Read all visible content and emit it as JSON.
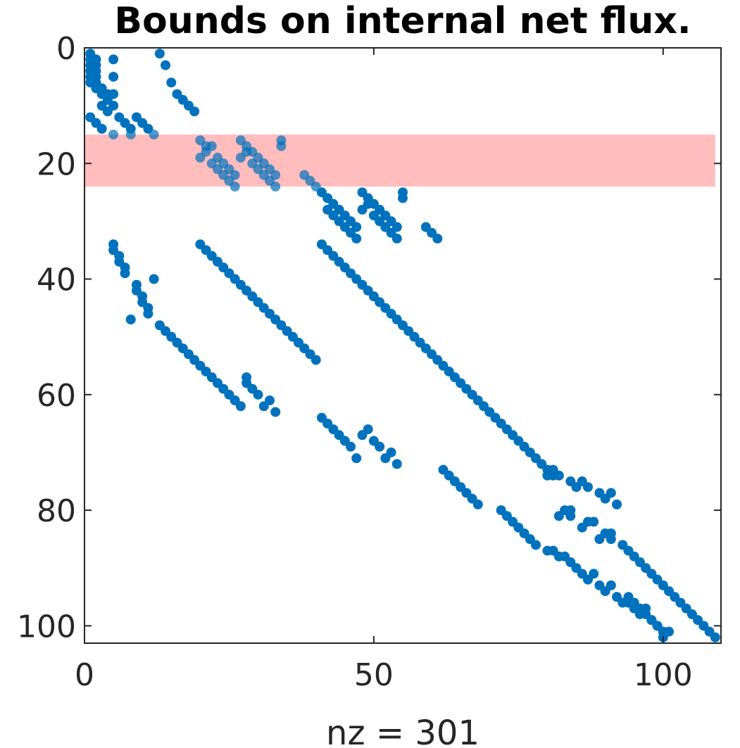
{
  "chart_data": {
    "type": "scatter",
    "title": "Bounds on internal net flux.",
    "xlabel": "nz = 301",
    "ylabel": "",
    "xlim": [
      0,
      110
    ],
    "ylim": [
      0,
      103
    ],
    "y_reversed": true,
    "xticks": [
      0,
      50,
      100
    ],
    "yticks": [
      0,
      20,
      40,
      60,
      80,
      100
    ],
    "grid": false,
    "marker_color": "#0072BD",
    "highlight": {
      "y_from": 15,
      "y_to": 24,
      "x_from": 0,
      "x_to": 109,
      "color": "#FF8080"
    },
    "points": [
      [
        1,
        1
      ],
      [
        1,
        2
      ],
      [
        1,
        3
      ],
      [
        1,
        4
      ],
      [
        1,
        5
      ],
      [
        1,
        6
      ],
      [
        2,
        2
      ],
      [
        2,
        3
      ],
      [
        2,
        4
      ],
      [
        2,
        5
      ],
      [
        2,
        6
      ],
      [
        2,
        7
      ],
      [
        3,
        7
      ],
      [
        3,
        8
      ],
      [
        3,
        10
      ],
      [
        4,
        8
      ],
      [
        4,
        9
      ],
      [
        4,
        11
      ],
      [
        5,
        2
      ],
      [
        5,
        5
      ],
      [
        5,
        8
      ],
      [
        5,
        10
      ],
      [
        5,
        15
      ],
      [
        1,
        12
      ],
      [
        2,
        13
      ],
      [
        3,
        14
      ],
      [
        6,
        12
      ],
      [
        7,
        13
      ],
      [
        8,
        14
      ],
      [
        8,
        15
      ],
      [
        9,
        12
      ],
      [
        10,
        13
      ],
      [
        11,
        14
      ],
      [
        12,
        15
      ],
      [
        13,
        1
      ],
      [
        14,
        3
      ],
      [
        15,
        6
      ],
      [
        16,
        8
      ],
      [
        17,
        9
      ],
      [
        18,
        10
      ],
      [
        19,
        11
      ],
      [
        20,
        16
      ],
      [
        20,
        19
      ],
      [
        21,
        17
      ],
      [
        21,
        18
      ],
      [
        22,
        17
      ],
      [
        22,
        20
      ],
      [
        23,
        19
      ],
      [
        23,
        21
      ],
      [
        24,
        20
      ],
      [
        24,
        22
      ],
      [
        25,
        21
      ],
      [
        25,
        23
      ],
      [
        26,
        22
      ],
      [
        26,
        24
      ],
      [
        27,
        16
      ],
      [
        27,
        19
      ],
      [
        28,
        17
      ],
      [
        28,
        18
      ],
      [
        29,
        18
      ],
      [
        29,
        20
      ],
      [
        30,
        19
      ],
      [
        30,
        21
      ],
      [
        31,
        20
      ],
      [
        31,
        22
      ],
      [
        32,
        21
      ],
      [
        32,
        23
      ],
      [
        33,
        22
      ],
      [
        33,
        24
      ],
      [
        34,
        16
      ],
      [
        34,
        17
      ],
      [
        38,
        22
      ],
      [
        39,
        23
      ],
      [
        40,
        24
      ],
      [
        41,
        25
      ],
      [
        42,
        26
      ],
      [
        42,
        28
      ],
      [
        43,
        27
      ],
      [
        43,
        29
      ],
      [
        44,
        28
      ],
      [
        44,
        30
      ],
      [
        45,
        29
      ],
      [
        45,
        31
      ],
      [
        46,
        30
      ],
      [
        46,
        32
      ],
      [
        47,
        31
      ],
      [
        47,
        33
      ],
      [
        48,
        25
      ],
      [
        48,
        28
      ],
      [
        49,
        26
      ],
      [
        49,
        27
      ],
      [
        50,
        27
      ],
      [
        50,
        29
      ],
      [
        51,
        28
      ],
      [
        51,
        30
      ],
      [
        52,
        29
      ],
      [
        52,
        31
      ],
      [
        53,
        30
      ],
      [
        53,
        32
      ],
      [
        54,
        31
      ],
      [
        54,
        33
      ],
      [
        55,
        25
      ],
      [
        55,
        26
      ],
      [
        59,
        31
      ],
      [
        60,
        32
      ],
      [
        61,
        33
      ],
      [
        5,
        34
      ],
      [
        5,
        35
      ],
      [
        6,
        36
      ],
      [
        6,
        37
      ],
      [
        7,
        38
      ],
      [
        7,
        39
      ],
      [
        9,
        41
      ],
      [
        9,
        42
      ],
      [
        10,
        43
      ],
      [
        10,
        44
      ],
      [
        11,
        45
      ],
      [
        11,
        46
      ],
      [
        12,
        40
      ],
      [
        8,
        47
      ],
      [
        20,
        34
      ],
      [
        21,
        35
      ],
      [
        22,
        36
      ],
      [
        23,
        37
      ],
      [
        24,
        38
      ],
      [
        25,
        39
      ],
      [
        26,
        40
      ],
      [
        27,
        41
      ],
      [
        28,
        42
      ],
      [
        29,
        43
      ],
      [
        30,
        44
      ],
      [
        31,
        45
      ],
      [
        32,
        46
      ],
      [
        33,
        47
      ],
      [
        34,
        48
      ],
      [
        35,
        49
      ],
      [
        36,
        50
      ],
      [
        37,
        51
      ],
      [
        38,
        52
      ],
      [
        39,
        53
      ],
      [
        40,
        54
      ],
      [
        13,
        48
      ],
      [
        14,
        49
      ],
      [
        15,
        50
      ],
      [
        16,
        51
      ],
      [
        17,
        52
      ],
      [
        18,
        53
      ],
      [
        19,
        54
      ],
      [
        20,
        55
      ],
      [
        21,
        56
      ],
      [
        22,
        57
      ],
      [
        23,
        58
      ],
      [
        24,
        59
      ],
      [
        25,
        60
      ],
      [
        26,
        61
      ],
      [
        27,
        62
      ],
      [
        28,
        58
      ],
      [
        28,
        57
      ],
      [
        29,
        59
      ],
      [
        30,
        60
      ],
      [
        31,
        62
      ],
      [
        32,
        61
      ],
      [
        33,
        63
      ],
      [
        41,
        34
      ],
      [
        42,
        35
      ],
      [
        43,
        36
      ],
      [
        44,
        37
      ],
      [
        45,
        38
      ],
      [
        46,
        39
      ],
      [
        47,
        40
      ],
      [
        48,
        41
      ],
      [
        49,
        42
      ],
      [
        50,
        43
      ],
      [
        51,
        44
      ],
      [
        52,
        45
      ],
      [
        53,
        46
      ],
      [
        54,
        47
      ],
      [
        55,
        48
      ],
      [
        56,
        49
      ],
      [
        57,
        50
      ],
      [
        58,
        51
      ],
      [
        59,
        52
      ],
      [
        60,
        53
      ],
      [
        61,
        54
      ],
      [
        62,
        55
      ],
      [
        63,
        56
      ],
      [
        64,
        57
      ],
      [
        65,
        58
      ],
      [
        66,
        59
      ],
      [
        67,
        60
      ],
      [
        68,
        61
      ],
      [
        69,
        62
      ],
      [
        70,
        63
      ],
      [
        71,
        64
      ],
      [
        72,
        65
      ],
      [
        73,
        66
      ],
      [
        74,
        67
      ],
      [
        75,
        68
      ],
      [
        76,
        69
      ],
      [
        77,
        70
      ],
      [
        78,
        71
      ],
      [
        79,
        72
      ],
      [
        80,
        73
      ],
      [
        81,
        74
      ],
      [
        41,
        64
      ],
      [
        42,
        65
      ],
      [
        43,
        66
      ],
      [
        44,
        67
      ],
      [
        45,
        68
      ],
      [
        46,
        69
      ],
      [
        47,
        71
      ],
      [
        48,
        67
      ],
      [
        49,
        66
      ],
      [
        50,
        68
      ],
      [
        51,
        69
      ],
      [
        52,
        71
      ],
      [
        53,
        70
      ],
      [
        54,
        72
      ],
      [
        62,
        73
      ],
      [
        63,
        74
      ],
      [
        64,
        75
      ],
      [
        65,
        76
      ],
      [
        66,
        77
      ],
      [
        67,
        78
      ],
      [
        68,
        79
      ],
      [
        72,
        80
      ],
      [
        73,
        81
      ],
      [
        74,
        82
      ],
      [
        75,
        83
      ],
      [
        76,
        84
      ],
      [
        77,
        85
      ],
      [
        78,
        86
      ],
      [
        80,
        74
      ],
      [
        81,
        73
      ],
      [
        82,
        74
      ],
      [
        84,
        75
      ],
      [
        85,
        76
      ],
      [
        86,
        75
      ],
      [
        87,
        76
      ],
      [
        89,
        77
      ],
      [
        90,
        78
      ],
      [
        91,
        77
      ],
      [
        92,
        79
      ],
      [
        82,
        81
      ],
      [
        83,
        80
      ],
      [
        84,
        80
      ],
      [
        84,
        81
      ],
      [
        86,
        83
      ],
      [
        87,
        82
      ],
      [
        88,
        82
      ],
      [
        89,
        85
      ],
      [
        90,
        84
      ],
      [
        91,
        84
      ],
      [
        91,
        85
      ],
      [
        80,
        87
      ],
      [
        81,
        87
      ],
      [
        82,
        88
      ],
      [
        83,
        88
      ],
      [
        84,
        89
      ],
      [
        85,
        90
      ],
      [
        86,
        91
      ],
      [
        87,
        92
      ],
      [
        88,
        91
      ],
      [
        89,
        93
      ],
      [
        90,
        94
      ],
      [
        91,
        93
      ],
      [
        92,
        95
      ],
      [
        93,
        96
      ],
      [
        94,
        96
      ],
      [
        95,
        97
      ],
      [
        96,
        98
      ],
      [
        97,
        98
      ],
      [
        98,
        99
      ],
      [
        99,
        100
      ],
      [
        100,
        101
      ],
      [
        100,
        102
      ],
      [
        93,
        86
      ],
      [
        94,
        87
      ],
      [
        95,
        88
      ],
      [
        96,
        89
      ],
      [
        97,
        90
      ],
      [
        98,
        91
      ],
      [
        99,
        92
      ],
      [
        100,
        93
      ],
      [
        101,
        94
      ],
      [
        102,
        95
      ],
      [
        103,
        96
      ],
      [
        104,
        97
      ],
      [
        105,
        98
      ],
      [
        106,
        99
      ],
      [
        107,
        100
      ],
      [
        108,
        101
      ],
      [
        109,
        102
      ],
      [
        94,
        95
      ],
      [
        95,
        96
      ],
      [
        96,
        97
      ],
      [
        97,
        97
      ],
      [
        98,
        99
      ],
      [
        99,
        100
      ],
      [
        100,
        101
      ],
      [
        101,
        101
      ]
    ]
  }
}
